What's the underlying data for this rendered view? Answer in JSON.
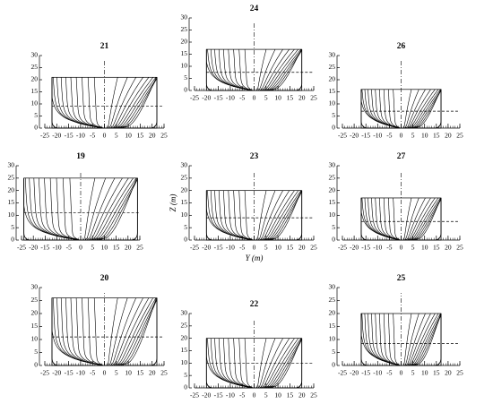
{
  "chart_data": [
    {
      "type": "line",
      "title": "24",
      "half_beam": 20,
      "depth": 17,
      "draft": 7.5,
      "xlim": [
        -25,
        25
      ],
      "ylim": [
        0,
        30
      ],
      "xticks": [
        -25,
        -20,
        -15,
        -10,
        -5,
        0,
        5,
        10,
        15,
        20,
        25
      ],
      "yticks": [
        0,
        5,
        10,
        15,
        20,
        25,
        30
      ]
    },
    {
      "type": "line",
      "title": "21",
      "half_beam": 22,
      "depth": 21,
      "draft": 9,
      "xlim": [
        -25,
        25
      ],
      "ylim": [
        0,
        30
      ],
      "xticks": [
        -25,
        -20,
        -15,
        -10,
        -5,
        0,
        5,
        10,
        15,
        20,
        25
      ],
      "yticks": [
        0,
        5,
        10,
        15,
        20,
        25,
        30
      ]
    },
    {
      "type": "line",
      "title": "26",
      "half_beam": 17,
      "depth": 16,
      "draft": 7,
      "xlim": [
        -25,
        25
      ],
      "ylim": [
        0,
        30
      ],
      "xticks": [
        -25,
        -20,
        -15,
        -10,
        -5,
        0,
        5,
        10,
        15,
        20,
        25
      ],
      "yticks": [
        0,
        5,
        10,
        15,
        20,
        25,
        30
      ]
    },
    {
      "type": "line",
      "title": "19",
      "half_beam": 24,
      "depth": 25,
      "draft": 11,
      "xlim": [
        -25,
        25
      ],
      "ylim": [
        0,
        30
      ],
      "xticks": [
        -25,
        -20,
        -15,
        -10,
        -5,
        0,
        5,
        10,
        15,
        20,
        25
      ],
      "yticks": [
        0,
        5,
        10,
        15,
        20,
        25,
        30
      ]
    },
    {
      "type": "line",
      "title": "23",
      "half_beam": 20,
      "depth": 20,
      "draft": 9,
      "xlim": [
        -25,
        25
      ],
      "ylim": [
        0,
        30
      ],
      "xticks": [
        -25,
        -20,
        -15,
        -10,
        -5,
        0,
        5,
        10,
        15,
        20,
        25
      ],
      "yticks": [
        0,
        5,
        10,
        15,
        20,
        25,
        30
      ],
      "xlabel": "Y (m)",
      "ylabel": "Z (m)"
    },
    {
      "type": "line",
      "title": "27",
      "half_beam": 17,
      "depth": 17,
      "draft": 7.5,
      "xlim": [
        -25,
        25
      ],
      "ylim": [
        0,
        30
      ],
      "xticks": [
        -25,
        -20,
        -15,
        -10,
        -5,
        0,
        5,
        10,
        15,
        20,
        25
      ],
      "yticks": [
        0,
        5,
        10,
        15,
        20,
        25,
        30
      ]
    },
    {
      "type": "line",
      "title": "20",
      "half_beam": 22,
      "depth": 26,
      "draft": 11,
      "xlim": [
        -25,
        25
      ],
      "ylim": [
        0,
        30
      ],
      "xticks": [
        -25,
        -20,
        -15,
        -10,
        -5,
        0,
        5,
        10,
        15,
        20,
        25
      ],
      "yticks": [
        0,
        5,
        10,
        15,
        20,
        25,
        30
      ]
    },
    {
      "type": "line",
      "title": "22",
      "half_beam": 20,
      "depth": 20,
      "draft": 10,
      "xlim": [
        -25,
        25
      ],
      "ylim": [
        0,
        30
      ],
      "xticks": [
        -25,
        -20,
        -15,
        -10,
        -5,
        0,
        5,
        10,
        15,
        20,
        25
      ],
      "yticks": [
        0,
        5,
        10,
        15,
        20,
        25,
        30
      ]
    },
    {
      "type": "line",
      "title": "25",
      "half_beam": 17,
      "depth": 20,
      "draft": 8.5,
      "xlim": [
        -25,
        25
      ],
      "ylim": [
        0,
        30
      ],
      "xticks": [
        -25,
        -20,
        -15,
        -10,
        -5,
        0,
        5,
        10,
        15,
        20,
        25
      ],
      "yticks": [
        0,
        5,
        10,
        15,
        20,
        25,
        30
      ]
    }
  ]
}
